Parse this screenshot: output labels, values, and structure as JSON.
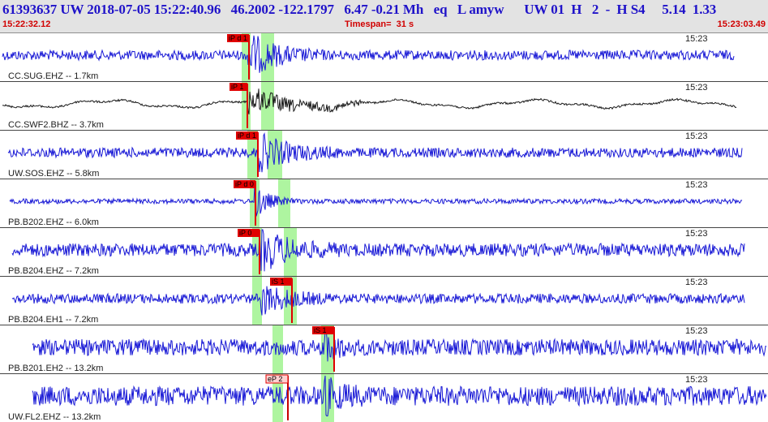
{
  "header": {
    "title": "61393637 UW 2018-07-05 15:22:40.96   46.2002 -122.1797   6.47 -0.21 Mh   eq   L amyw      UW 01  H   2  -  H S4     5.14  1.33",
    "time_start": "15:22:32.12",
    "timespan": "Timespan=  31 s",
    "time_end": "15:23:03.49"
  },
  "colors": {
    "trace_blue": "#1a1ad6",
    "trace_black": "#1a1a1a",
    "pick_red": "#e00000",
    "pick_light": "#ff7b7b",
    "window_green": "#aef5a0",
    "header_bg": "#e3e3e3",
    "header_text": "#1f12c9",
    "time_red": "#d10000"
  },
  "traces": [
    {
      "label": "CC.SUG.EHZ -- 1.7km",
      "tick": "15:23",
      "color": "blue",
      "picks": [
        {
          "label": "iP d 1",
          "style": "solid"
        }
      ]
    },
    {
      "label": "CC.SWF2.BHZ -- 3.7km",
      "tick": "15:23",
      "color": "black",
      "picks": [
        {
          "label": "iP 1",
          "style": "solid"
        }
      ]
    },
    {
      "label": "UW.SOS.EHZ -- 5.8km",
      "tick": "15:23",
      "color": "blue",
      "picks": [
        {
          "label": "iP d 1",
          "style": "solid"
        }
      ]
    },
    {
      "label": "PB.B202.EHZ -- 6.0km",
      "tick": "15:23",
      "color": "blue",
      "picks": [
        {
          "label": "iP d 0",
          "style": "solid"
        }
      ]
    },
    {
      "label": "PB.B204.EHZ -- 7.2km",
      "tick": "15:23",
      "color": "blue",
      "picks": [
        {
          "label": "iP 0",
          "style": "solid"
        }
      ]
    },
    {
      "label": "PB.B204.EH1 -- 7.2km",
      "tick": "15:23",
      "color": "blue",
      "picks": [
        {
          "label": "iS 1",
          "style": "solid"
        }
      ]
    },
    {
      "label": "PB.B201.EH2 -- 13.2km",
      "tick": "15:23",
      "color": "blue",
      "picks": [
        {
          "label": "iS 1",
          "style": "solid"
        }
      ]
    },
    {
      "label": "UW.FL2.EHZ -- 13.2km",
      "tick": "15:23",
      "color": "blue",
      "picks": [
        {
          "label": "eP 2",
          "style": "light"
        }
      ]
    }
  ]
}
